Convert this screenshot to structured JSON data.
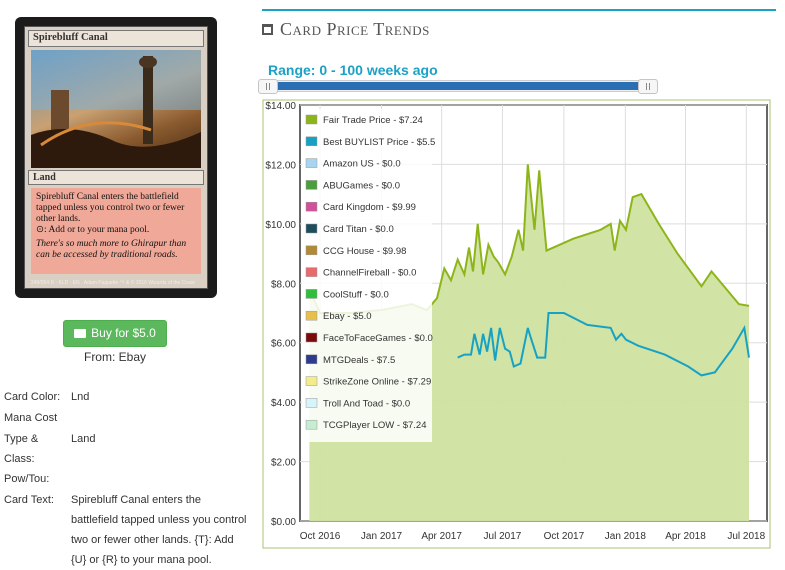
{
  "card": {
    "name": "Spirebluff Canal",
    "type_line": "Land",
    "rules_text": "Spirebluff Canal enters the battlefield tapped unless you control two or fewer other lands.",
    "mana_line": ": Add  or  to your mana pool.",
    "flavor_text": "There's so much more to Ghirapur than can be accessed by traditional roads.",
    "footer": "249/264 R · KLD · EN · Adam Paquette     ™ & © 2016 Wizards of the Coast"
  },
  "buy": {
    "label": "Buy for $5.0",
    "from": "From: Ebay"
  },
  "details": [
    {
      "key": "Card Color:",
      "value": "Lnd"
    },
    {
      "key": "Mana Cost",
      "value": ""
    },
    {
      "key": "Type & Class:",
      "value": "Land"
    },
    {
      "key": "Pow/Tou:",
      "value": ""
    },
    {
      "key": "Card Text:",
      "value": "Spirebluff Canal enters the battlefield tapped unless you control two or fewer other lands. {T}: Add {U} or {R} to your mana pool."
    }
  ],
  "section_title": "Card Price Trends",
  "range_label": "Range: 0 - 100 weeks ago",
  "colors": {
    "accent": "#1ba1c6",
    "button": "#5cb85c",
    "slider_fill": "#2a6fb3",
    "fair_trade": "#8db51a",
    "fair_trade_area": "#cfe2a0",
    "buylist": "#2aa7c9"
  },
  "chart_data": {
    "type": "area",
    "y_tick_labels": [
      "$0.00",
      "$2.00",
      "$4.00",
      "$6.00",
      "$8.00",
      "$10.00",
      "$12.00",
      "$14.00"
    ],
    "x_tick_labels": [
      "Oct 2016",
      "Jan 2017",
      "Apr 2017",
      "Jul 2017",
      "Oct 2017",
      "Jan 2018",
      "Apr 2018",
      "Jul 2018"
    ],
    "ylim": [
      0,
      14
    ],
    "xlim": [
      "2016-09-01",
      "2018-08-01"
    ],
    "grid": true,
    "legend_position": "top-left",
    "legend": [
      {
        "label": "Fair Trade Price - $7.24",
        "color": "#8db51a"
      },
      {
        "label": "Best BUYLIST Price - $5.5",
        "color": "#17a2c4"
      },
      {
        "label": "Amazon US - $0.0",
        "color": "#a8d4f0"
      },
      {
        "label": "ABUGames - $0.0",
        "color": "#4c9e3c"
      },
      {
        "label": "Card Kingdom - $9.99",
        "color": "#d0509a"
      },
      {
        "label": "Card Titan - $0.0",
        "color": "#1e4e5c"
      },
      {
        "label": "CCG House - $9.98",
        "color": "#b08a36"
      },
      {
        "label": "ChannelFireball - $0.0",
        "color": "#e86a6a"
      },
      {
        "label": "CoolStuff - $0.0",
        "color": "#2fbf3a"
      },
      {
        "label": "Ebay - $5.0",
        "color": "#e6c04a"
      },
      {
        "label": "FaceToFaceGames - $0.0",
        "color": "#7a0b0b"
      },
      {
        "label": "MTGDeals - $7.5",
        "color": "#2e3a8c"
      },
      {
        "label": "StrikeZone Online - $7.29",
        "color": "#f4ec8a"
      },
      {
        "label": "Troll And Toad - $0.0",
        "color": "#d6f4fa"
      },
      {
        "label": "TCGPlayer LOW - $7.24",
        "color": "#c6ecd2"
      }
    ],
    "series": [
      {
        "name": "Fair Trade Price - $7.24",
        "fill": true,
        "points": [
          [
            "2016-09-15",
            7.8
          ],
          [
            "2016-10-01",
            7.0
          ],
          [
            "2016-11-15",
            7.0
          ],
          [
            "2017-01-01",
            7.1
          ],
          [
            "2017-02-15",
            7.3
          ],
          [
            "2017-03-10",
            7.1
          ],
          [
            "2017-03-25",
            7.5
          ],
          [
            "2017-04-05",
            8.5
          ],
          [
            "2017-04-15",
            8.1
          ],
          [
            "2017-04-25",
            8.8
          ],
          [
            "2017-05-05",
            8.3
          ],
          [
            "2017-05-12",
            9.2
          ],
          [
            "2017-05-18",
            8.4
          ],
          [
            "2017-05-25",
            10.0
          ],
          [
            "2017-06-02",
            8.3
          ],
          [
            "2017-06-10",
            9.3
          ],
          [
            "2017-06-18",
            8.9
          ],
          [
            "2017-06-25",
            8.7
          ],
          [
            "2017-07-05",
            8.3
          ],
          [
            "2017-07-15",
            8.9
          ],
          [
            "2017-07-25",
            9.8
          ],
          [
            "2017-08-01",
            9.1
          ],
          [
            "2017-08-08",
            12.0
          ],
          [
            "2017-08-18",
            9.8
          ],
          [
            "2017-08-25",
            11.8
          ],
          [
            "2017-09-05",
            9.1
          ],
          [
            "2017-10-15",
            9.5
          ],
          [
            "2017-11-25",
            9.8
          ],
          [
            "2017-12-10",
            10.0
          ],
          [
            "2017-12-16",
            9.1
          ],
          [
            "2017-12-24",
            10.1
          ],
          [
            "2018-01-02",
            9.8
          ],
          [
            "2018-01-12",
            10.9
          ],
          [
            "2018-01-25",
            11.0
          ],
          [
            "2018-02-20",
            10.0
          ],
          [
            "2018-03-20",
            9.0
          ],
          [
            "2018-04-25",
            7.9
          ],
          [
            "2018-05-10",
            8.4
          ],
          [
            "2018-06-20",
            7.3
          ],
          [
            "2018-07-05",
            7.24
          ]
        ]
      },
      {
        "name": "Best BUYLIST Price - $5.5",
        "fill": false,
        "points": [
          [
            "2017-04-25",
            5.5
          ],
          [
            "2017-05-05",
            5.6
          ],
          [
            "2017-05-15",
            5.6
          ],
          [
            "2017-05-20",
            6.3
          ],
          [
            "2017-05-28",
            5.6
          ],
          [
            "2017-06-02",
            6.3
          ],
          [
            "2017-06-08",
            5.7
          ],
          [
            "2017-06-14",
            6.5
          ],
          [
            "2017-06-20",
            5.4
          ],
          [
            "2017-06-27",
            6.5
          ],
          [
            "2017-07-05",
            5.8
          ],
          [
            "2017-07-12",
            5.7
          ],
          [
            "2017-07-18",
            5.2
          ],
          [
            "2017-07-28",
            5.3
          ],
          [
            "2017-08-08",
            6.5
          ],
          [
            "2017-08-12",
            6.2
          ],
          [
            "2017-08-22",
            5.5
          ],
          [
            "2017-09-03",
            5.5
          ],
          [
            "2017-09-08",
            7.0
          ],
          [
            "2017-10-01",
            7.0
          ],
          [
            "2017-11-05",
            6.6
          ],
          [
            "2017-12-10",
            6.5
          ],
          [
            "2017-12-18",
            6.1
          ],
          [
            "2017-12-26",
            6.3
          ],
          [
            "2018-01-02",
            6.1
          ],
          [
            "2018-01-20",
            5.9
          ],
          [
            "2018-03-01",
            5.6
          ],
          [
            "2018-04-05",
            5.2
          ],
          [
            "2018-04-25",
            4.9
          ],
          [
            "2018-05-15",
            5.0
          ],
          [
            "2018-06-10",
            5.8
          ],
          [
            "2018-06-28",
            6.5
          ],
          [
            "2018-07-05",
            5.5
          ]
        ]
      }
    ]
  }
}
